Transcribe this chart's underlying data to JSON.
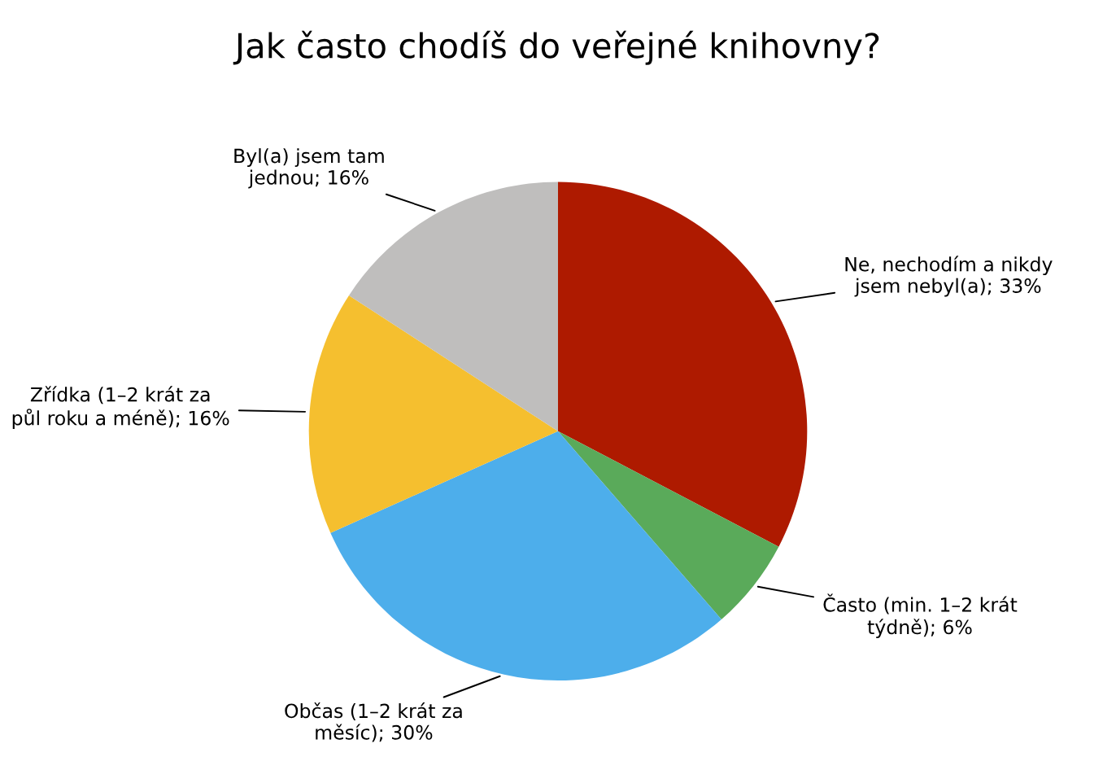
{
  "chart_data": {
    "type": "pie",
    "title": "Jak často chodíš do veřejné knihovny?",
    "categories": [
      "Ne, nechodím a nikdy\njsem nebyl(a)",
      "Často (min. 1–2 krát\ntýdně)",
      "Občas (1–2 krát za\nměsíc)",
      "Zřídka (1–2 krát za\npůl roku a méně)",
      "Byl(a) jsem tam\njednou"
    ],
    "values": [
      33,
      6,
      30,
      16,
      16
    ],
    "value_labels": [
      "33%",
      "6%",
      "30%",
      "16%",
      "16%"
    ],
    "colors": [
      "#ae1a00",
      "#5aaa5a",
      "#4daeeb",
      "#f5bf2f",
      "#bfbebd"
    ]
  }
}
